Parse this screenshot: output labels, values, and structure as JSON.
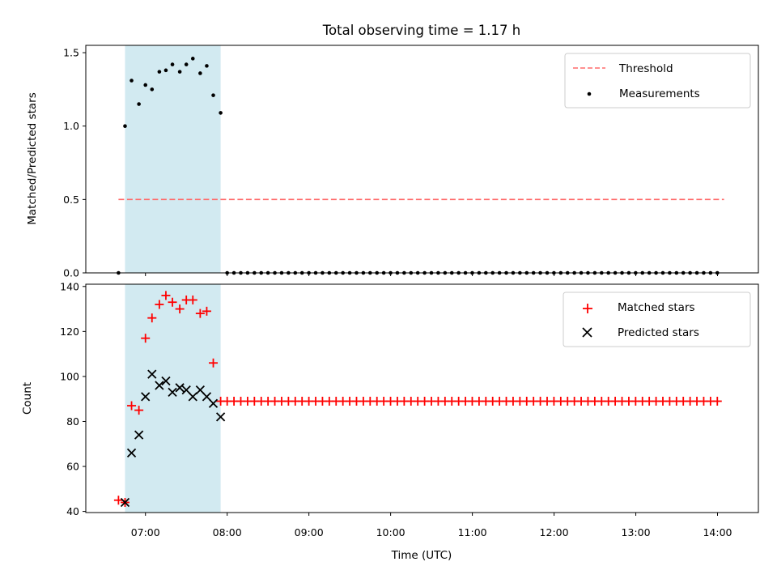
{
  "chart_data": [
    {
      "type": "scatter",
      "title": "Total observing time = 1.17 h",
      "xlabel": "",
      "ylabel": "Matched/Predicted stars",
      "x_unit": "time (UTC, decimal hours)",
      "xlim": [
        6.27,
        14.5
      ],
      "ylim": [
        0,
        1.55
      ],
      "yticks": [
        0.0,
        0.5,
        1.0,
        1.5
      ],
      "yticklabels": [
        "0.0",
        "0.5",
        "1.0",
        "1.5"
      ],
      "shaded_region": {
        "x0": 6.75,
        "x1": 7.92,
        "color": "#add8e6"
      },
      "threshold": {
        "name": "Threshold",
        "value": 0.5,
        "x_range": [
          6.67,
          14.08
        ],
        "color": "#ff6b6b"
      },
      "series": [
        {
          "name": "Measurements",
          "marker": "dot",
          "color": "#000000",
          "points": [
            [
              6.67,
              0.0
            ],
            [
              6.75,
              1.0
            ],
            [
              6.83,
              1.31
            ],
            [
              6.92,
              1.15
            ],
            [
              7.0,
              1.28
            ],
            [
              7.08,
              1.25
            ],
            [
              7.17,
              1.37
            ],
            [
              7.25,
              1.38
            ],
            [
              7.33,
              1.42
            ],
            [
              7.42,
              1.37
            ],
            [
              7.5,
              1.42
            ],
            [
              7.58,
              1.46
            ],
            [
              7.67,
              1.36
            ],
            [
              7.75,
              1.41
            ],
            [
              7.83,
              1.21
            ],
            [
              7.92,
              1.09
            ]
          ],
          "zeros_from": 8.0,
          "zeros_to": 14.08,
          "zeros_step": 0.0833
        }
      ],
      "legend": {
        "placement": "top-right",
        "entries": [
          "Threshold",
          "Measurements"
        ]
      }
    },
    {
      "type": "scatter",
      "title": "",
      "xlabel": "Time (UTC)",
      "ylabel": "Count",
      "x_unit": "time (UTC, decimal hours)",
      "xlim": [
        6.27,
        14.5
      ],
      "ylim": [
        39.5,
        141
      ],
      "yticks": [
        40,
        60,
        80,
        100,
        120,
        140
      ],
      "yticklabels": [
        "40",
        "60",
        "80",
        "100",
        "120",
        "140"
      ],
      "xticks": [
        7,
        8,
        9,
        10,
        11,
        12,
        13,
        14
      ],
      "xticklabels": [
        "07:00",
        "08:00",
        "09:00",
        "10:00",
        "11:00",
        "12:00",
        "13:00",
        "14:00"
      ],
      "shaded_region": {
        "x0": 6.75,
        "x1": 7.92,
        "color": "#add8e6"
      },
      "series": [
        {
          "name": "Matched stars",
          "marker": "plus",
          "color": "#ff0000",
          "points": [
            [
              6.67,
              45
            ],
            [
              6.75,
              44
            ],
            [
              6.83,
              87
            ],
            [
              6.92,
              85
            ],
            [
              7.0,
              117
            ],
            [
              7.08,
              126
            ],
            [
              7.17,
              132
            ],
            [
              7.25,
              136
            ],
            [
              7.33,
              133
            ],
            [
              7.42,
              130
            ],
            [
              7.5,
              134
            ],
            [
              7.58,
              134
            ],
            [
              7.67,
              128
            ],
            [
              7.75,
              129
            ],
            [
              7.83,
              106
            ],
            [
              7.92,
              89
            ]
          ],
          "const_value": 89,
          "const_from": 8.0,
          "const_to": 14.08,
          "const_step": 0.0833
        },
        {
          "name": "Predicted stars",
          "marker": "x",
          "color": "#000000",
          "points": [
            [
              6.75,
              44
            ],
            [
              6.83,
              66
            ],
            [
              6.92,
              74
            ],
            [
              7.0,
              91
            ],
            [
              7.08,
              101
            ],
            [
              7.17,
              96
            ],
            [
              7.25,
              98
            ],
            [
              7.33,
              93
            ],
            [
              7.42,
              95
            ],
            [
              7.5,
              94
            ],
            [
              7.58,
              91
            ],
            [
              7.67,
              94
            ],
            [
              7.75,
              91
            ],
            [
              7.83,
              88
            ],
            [
              7.92,
              82
            ]
          ]
        }
      ],
      "legend": {
        "placement": "top-right",
        "entries": [
          "Matched stars",
          "Predicted stars"
        ]
      }
    }
  ]
}
